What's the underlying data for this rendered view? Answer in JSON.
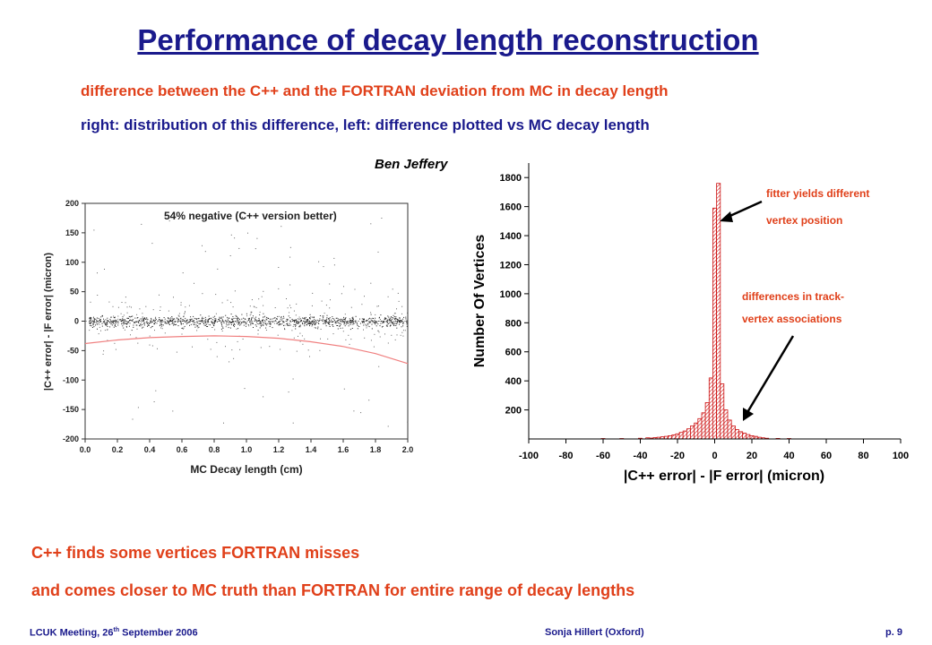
{
  "slide": {
    "title": "Performance of decay length reconstruction",
    "subtitle_1": "difference between the C++ and the FORTRAN deviation from MC in decay length",
    "subtitle_2": "right: distribution of this difference, left: difference plotted vs MC decay length",
    "author": "Ben Jeffery",
    "conclusion_1": "C++ finds some vertices FORTRAN misses",
    "conclusion_2": "and comes closer to MC truth than FORTRAN for entire range of decay lengths",
    "footer": {
      "left_prefix": "LCUK Meeting, 26",
      "left_sup": "th",
      "left_suffix": " September 2006",
      "center": "Sonja Hillert (Oxford)",
      "right": "p. 9"
    }
  },
  "colors": {
    "title": "#1a1a8c",
    "highlight": "#e0401a",
    "fit_curve": "#f08080",
    "hist_bar": "#cc1111"
  },
  "chart_data": [
    {
      "type": "scatter",
      "xlabel": "MC Decay length (cm)",
      "ylabel": "|C++ error| - |F error| (micron)",
      "annotation": "54% negative (C++ version better)",
      "xlim": [
        0.0,
        2.0
      ],
      "ylim": [
        -200,
        200
      ],
      "x_ticks": [
        "0.0",
        "0.2",
        "0.4",
        "0.6",
        "0.8",
        "1.0",
        "1.2",
        "1.4",
        "1.6",
        "1.8",
        "2.0"
      ],
      "y_ticks": [
        "-200",
        "-150",
        "-100",
        "-50",
        "0",
        "50",
        "100",
        "150",
        "200"
      ],
      "fit_curve": {
        "x": [
          0.0,
          0.2,
          0.4,
          0.6,
          0.8,
          1.0,
          1.2,
          1.4,
          1.6,
          1.8,
          2.0
        ],
        "y": [
          -38,
          -32,
          -28,
          -26,
          -25,
          -26,
          -29,
          -35,
          -43,
          -55,
          -72
        ]
      },
      "points_description_note": ""
    },
    {
      "type": "bar",
      "xlabel": "|C++ error| - |F error| (micron)",
      "ylabel": "Number Of Vertices",
      "xlim": [
        -100,
        100
      ],
      "ylim": [
        0,
        1900
      ],
      "x_ticks": [
        "-100",
        "-80",
        "-60",
        "-40",
        "-20",
        "0",
        "20",
        "40",
        "60",
        "80",
        "100"
      ],
      "y_ticks": [
        "200",
        "400",
        "600",
        "800",
        "1000",
        "1200",
        "1400",
        "1600",
        "1800"
      ],
      "bin_width": 2,
      "bins": [
        {
          "x": -60,
          "y": 3
        },
        {
          "x": -50,
          "y": 3
        },
        {
          "x": -40,
          "y": 5
        },
        {
          "x": -36,
          "y": 8
        },
        {
          "x": -34,
          "y": 6
        },
        {
          "x": -32,
          "y": 10
        },
        {
          "x": -30,
          "y": 12
        },
        {
          "x": -28,
          "y": 15
        },
        {
          "x": -26,
          "y": 18
        },
        {
          "x": -24,
          "y": 22
        },
        {
          "x": -22,
          "y": 28
        },
        {
          "x": -20,
          "y": 35
        },
        {
          "x": -18,
          "y": 45
        },
        {
          "x": -16,
          "y": 55
        },
        {
          "x": -14,
          "y": 70
        },
        {
          "x": -12,
          "y": 90
        },
        {
          "x": -10,
          "y": 110
        },
        {
          "x": -8,
          "y": 140
        },
        {
          "x": -6,
          "y": 180
        },
        {
          "x": -4,
          "y": 250
        },
        {
          "x": -2,
          "y": 420
        },
        {
          "x": 0,
          "y": 1590
        },
        {
          "x": 2,
          "y": 1760
        },
        {
          "x": 4,
          "y": 380
        },
        {
          "x": 6,
          "y": 200
        },
        {
          "x": 8,
          "y": 130
        },
        {
          "x": 10,
          "y": 90
        },
        {
          "x": 12,
          "y": 65
        },
        {
          "x": 14,
          "y": 50
        },
        {
          "x": 16,
          "y": 40
        },
        {
          "x": 18,
          "y": 30
        },
        {
          "x": 20,
          "y": 22
        },
        {
          "x": 22,
          "y": 18
        },
        {
          "x": 24,
          "y": 12
        },
        {
          "x": 26,
          "y": 8
        },
        {
          "x": 28,
          "y": 5
        },
        {
          "x": 34,
          "y": 4
        },
        {
          "x": 40,
          "y": 3
        }
      ],
      "annotations": [
        {
          "line1": "fitter yields different",
          "line2": "vertex position"
        },
        {
          "line1": "differences in track-",
          "line2": "vertex associations"
        }
      ]
    }
  ]
}
